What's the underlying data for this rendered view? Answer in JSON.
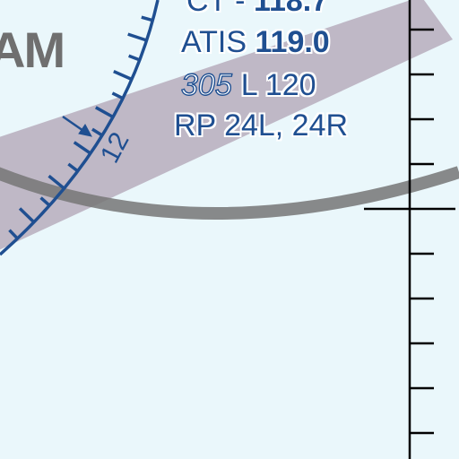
{
  "place_name": "AM",
  "ctaf": {
    "prefix": "CT - ",
    "frequency": "118.7"
  },
  "atis": {
    "prefix": "ATIS ",
    "frequency": "119.0"
  },
  "airport_info": {
    "elevation": "305",
    "lighting_and_length": "L 120"
  },
  "right_pattern": {
    "text": "RP 24L, 24R"
  },
  "compass_rose_label": "12",
  "colors": {
    "background": "#eaf7fb",
    "chart_blue": "#1f4f91",
    "place_name_gray": "#6f6f6f",
    "airway_band": "#8c6b86",
    "arc_gray": "#767676",
    "tick_black": "#000000"
  }
}
